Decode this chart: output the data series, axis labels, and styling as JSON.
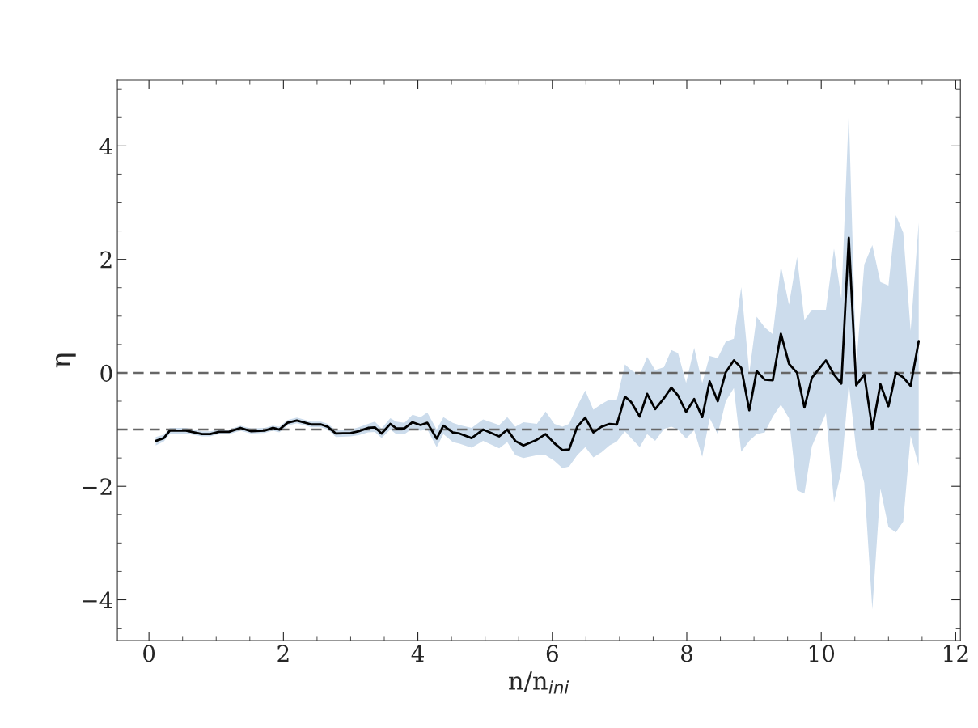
{
  "chart_data": {
    "type": "line",
    "xlabel": "n/n$_{ini}$",
    "ylabel": "η",
    "xlim": [
      -0.47,
      12.07
    ],
    "ylim": [
      -4.72,
      5.16
    ],
    "xticks": [
      0,
      2,
      4,
      6,
      8,
      10,
      12
    ],
    "yticks": [
      {
        "value": -4,
        "label": "−4"
      },
      {
        "value": -2,
        "label": "−2"
      },
      0,
      2,
      4
    ],
    "grid": false,
    "legend": false,
    "marker": "none",
    "line_style": "solid",
    "ref_lines": [
      {
        "axis": "y",
        "value": 0,
        "color": "#666666",
        "line_style": "dashed"
      },
      {
        "axis": "y",
        "value": -1,
        "color": "#666666",
        "line_style": "dashed"
      }
    ],
    "series": [
      {
        "color": "#000000",
        "x": [
          0.1,
          0.22,
          0.31,
          0.55,
          0.79,
          0.91,
          1.04,
          1.19,
          1.36,
          1.52,
          1.72,
          1.84,
          1.94,
          2.06,
          2.2,
          2.42,
          2.56,
          2.66,
          2.78,
          3.0,
          3.12,
          3.26,
          3.36,
          3.46,
          3.59,
          3.68,
          3.8,
          3.92,
          4.04,
          4.14,
          4.28,
          4.38,
          4.52,
          4.62,
          4.8,
          4.97,
          5.21,
          5.33,
          5.45,
          5.57,
          5.77,
          5.9,
          6.03,
          6.15,
          6.25,
          6.37,
          6.49,
          6.61,
          6.73,
          6.85,
          6.96,
          7.08,
          7.17,
          7.3,
          7.41,
          7.53,
          7.66,
          7.77,
          7.87,
          7.99,
          8.11,
          8.23,
          8.34,
          8.46,
          8.58,
          8.7,
          8.81,
          8.93,
          9.04,
          9.16,
          9.28,
          9.4,
          9.52,
          9.64,
          9.75,
          9.86,
          10.07,
          10.19,
          10.3,
          10.41,
          10.52,
          10.64,
          10.76,
          10.88,
          11.0,
          11.11,
          11.22,
          11.33,
          11.45
        ],
        "values": [
          -1.2,
          -1.15,
          -1.02,
          -1.02,
          -1.08,
          -1.08,
          -1.04,
          -1.04,
          -0.97,
          -1.03,
          -1.02,
          -0.97,
          -1.0,
          -0.88,
          -0.84,
          -0.91,
          -0.91,
          -0.95,
          -1.07,
          -1.06,
          -1.03,
          -0.97,
          -0.96,
          -1.07,
          -0.9,
          -0.98,
          -0.98,
          -0.87,
          -0.92,
          -0.88,
          -1.16,
          -0.93,
          -1.05,
          -1.07,
          -1.15,
          -1.0,
          -1.12,
          -1.0,
          -1.2,
          -1.28,
          -1.18,
          -1.08,
          -1.24,
          -1.36,
          -1.35,
          -0.95,
          -0.79,
          -1.05,
          -0.95,
          -0.9,
          -0.91,
          -0.42,
          -0.51,
          -0.77,
          -0.37,
          -0.64,
          -0.45,
          -0.26,
          -0.4,
          -0.69,
          -0.46,
          -0.78,
          -0.15,
          -0.5,
          0.01,
          0.22,
          0.09,
          -0.66,
          0.03,
          -0.12,
          -0.13,
          0.69,
          0.16,
          0.0,
          -0.61,
          -0.09,
          0.22,
          -0.03,
          -0.19,
          2.38,
          -0.22,
          -0.03,
          -0.99,
          -0.2,
          -0.59,
          0.0,
          -0.08,
          -0.23,
          0.56
        ],
        "lower": [
          -1.28,
          -1.21,
          -1.08,
          -1.07,
          -1.12,
          -1.12,
          -1.08,
          -1.08,
          -1.02,
          -1.07,
          -1.06,
          -1.02,
          -1.05,
          -0.93,
          -0.89,
          -0.96,
          -0.96,
          -1.0,
          -1.13,
          -1.12,
          -1.1,
          -1.05,
          -1.04,
          -1.15,
          -1.0,
          -1.08,
          -1.08,
          -0.98,
          -1.02,
          -1.0,
          -1.31,
          -1.08,
          -1.22,
          -1.25,
          -1.32,
          -1.2,
          -1.33,
          -1.22,
          -1.45,
          -1.5,
          -1.45,
          -1.45,
          -1.55,
          -1.68,
          -1.65,
          -1.45,
          -1.31,
          -1.49,
          -1.4,
          -1.28,
          -1.21,
          -1.03,
          -1.15,
          -1.31,
          -1.08,
          -1.2,
          -0.99,
          -0.95,
          -1.0,
          -1.16,
          -1.01,
          -1.48,
          -0.8,
          -1.08,
          -0.5,
          -0.27,
          -1.39,
          -1.2,
          -1.08,
          -1.05,
          -0.77,
          -0.56,
          -0.8,
          -2.07,
          -2.13,
          -1.3,
          -0.71,
          -2.28,
          -1.73,
          -0.19,
          -1.36,
          -1.94,
          -4.17,
          -2.04,
          -2.72,
          -2.81,
          -2.62,
          -1.11,
          -1.64
        ],
        "upper": [
          -1.13,
          -1.09,
          -0.97,
          -0.97,
          -1.03,
          -1.03,
          -1.0,
          -1.0,
          -0.93,
          -0.98,
          -0.97,
          -0.93,
          -0.95,
          -0.83,
          -0.79,
          -0.86,
          -0.86,
          -0.9,
          -1.01,
          -1.0,
          -0.96,
          -0.9,
          -0.86,
          -0.98,
          -0.8,
          -0.86,
          -0.88,
          -0.74,
          -0.78,
          -0.7,
          -1.0,
          -0.78,
          -0.88,
          -0.92,
          -0.97,
          -0.82,
          -0.92,
          -0.78,
          -0.95,
          -0.87,
          -0.9,
          -0.68,
          -0.9,
          -0.95,
          -0.9,
          -0.59,
          -0.31,
          -0.65,
          -0.55,
          -0.47,
          -0.47,
          0.15,
          0.05,
          -0.04,
          0.28,
          0.05,
          0.1,
          0.4,
          0.35,
          -0.18,
          0.44,
          -0.18,
          0.3,
          0.26,
          0.55,
          0.6,
          1.51,
          0.0,
          0.99,
          0.8,
          0.68,
          1.88,
          1.2,
          2.04,
          0.93,
          1.11,
          1.11,
          2.19,
          1.3,
          4.6,
          0.12,
          1.91,
          2.25,
          1.6,
          1.54,
          2.78,
          2.47,
          0.74,
          2.65
        ]
      }
    ]
  }
}
